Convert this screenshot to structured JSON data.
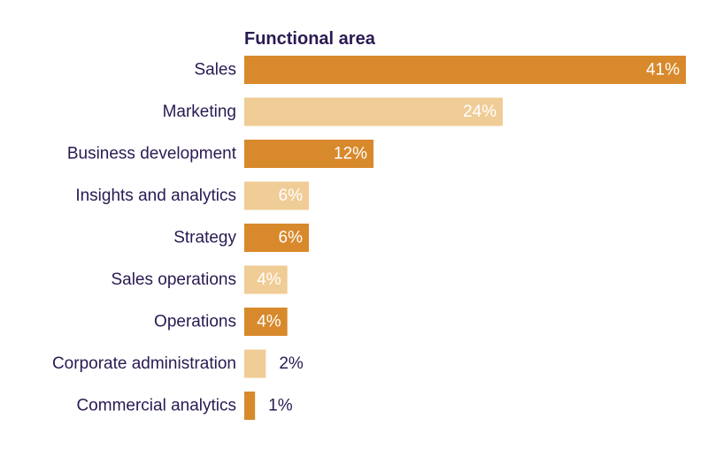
{
  "chart_data": {
    "type": "bar",
    "orientation": "horizontal",
    "title": "Functional area",
    "categories": [
      "Sales",
      "Marketing",
      "Business development",
      "Insights and analytics",
      "Strategy",
      "Sales operations",
      "Operations",
      "Corporate administration",
      "Commercial analytics"
    ],
    "values": [
      41,
      24,
      12,
      6,
      6,
      4,
      4,
      2,
      1
    ],
    "value_labels": [
      "41%",
      "24%",
      "12%",
      "6%",
      "6%",
      "4%",
      "4%",
      "2%",
      "1%"
    ],
    "value_unit": "%",
    "xlim": [
      0,
      41
    ],
    "grid": false,
    "legend": "none",
    "bar_colors": [
      "#D8892C",
      "#F0CC96",
      "#D8892C",
      "#F0CC96",
      "#D8892C",
      "#F0CC96",
      "#D8892C",
      "#F0CC96",
      "#D8892C"
    ]
  },
  "colors": {
    "title": "#2A1A52",
    "category_label": "#2A1A52",
    "label_inside": "#FFFFFF",
    "label_outside": "#2A1A52",
    "bar_dark": "#D8892C",
    "bar_light": "#F0CC96"
  }
}
